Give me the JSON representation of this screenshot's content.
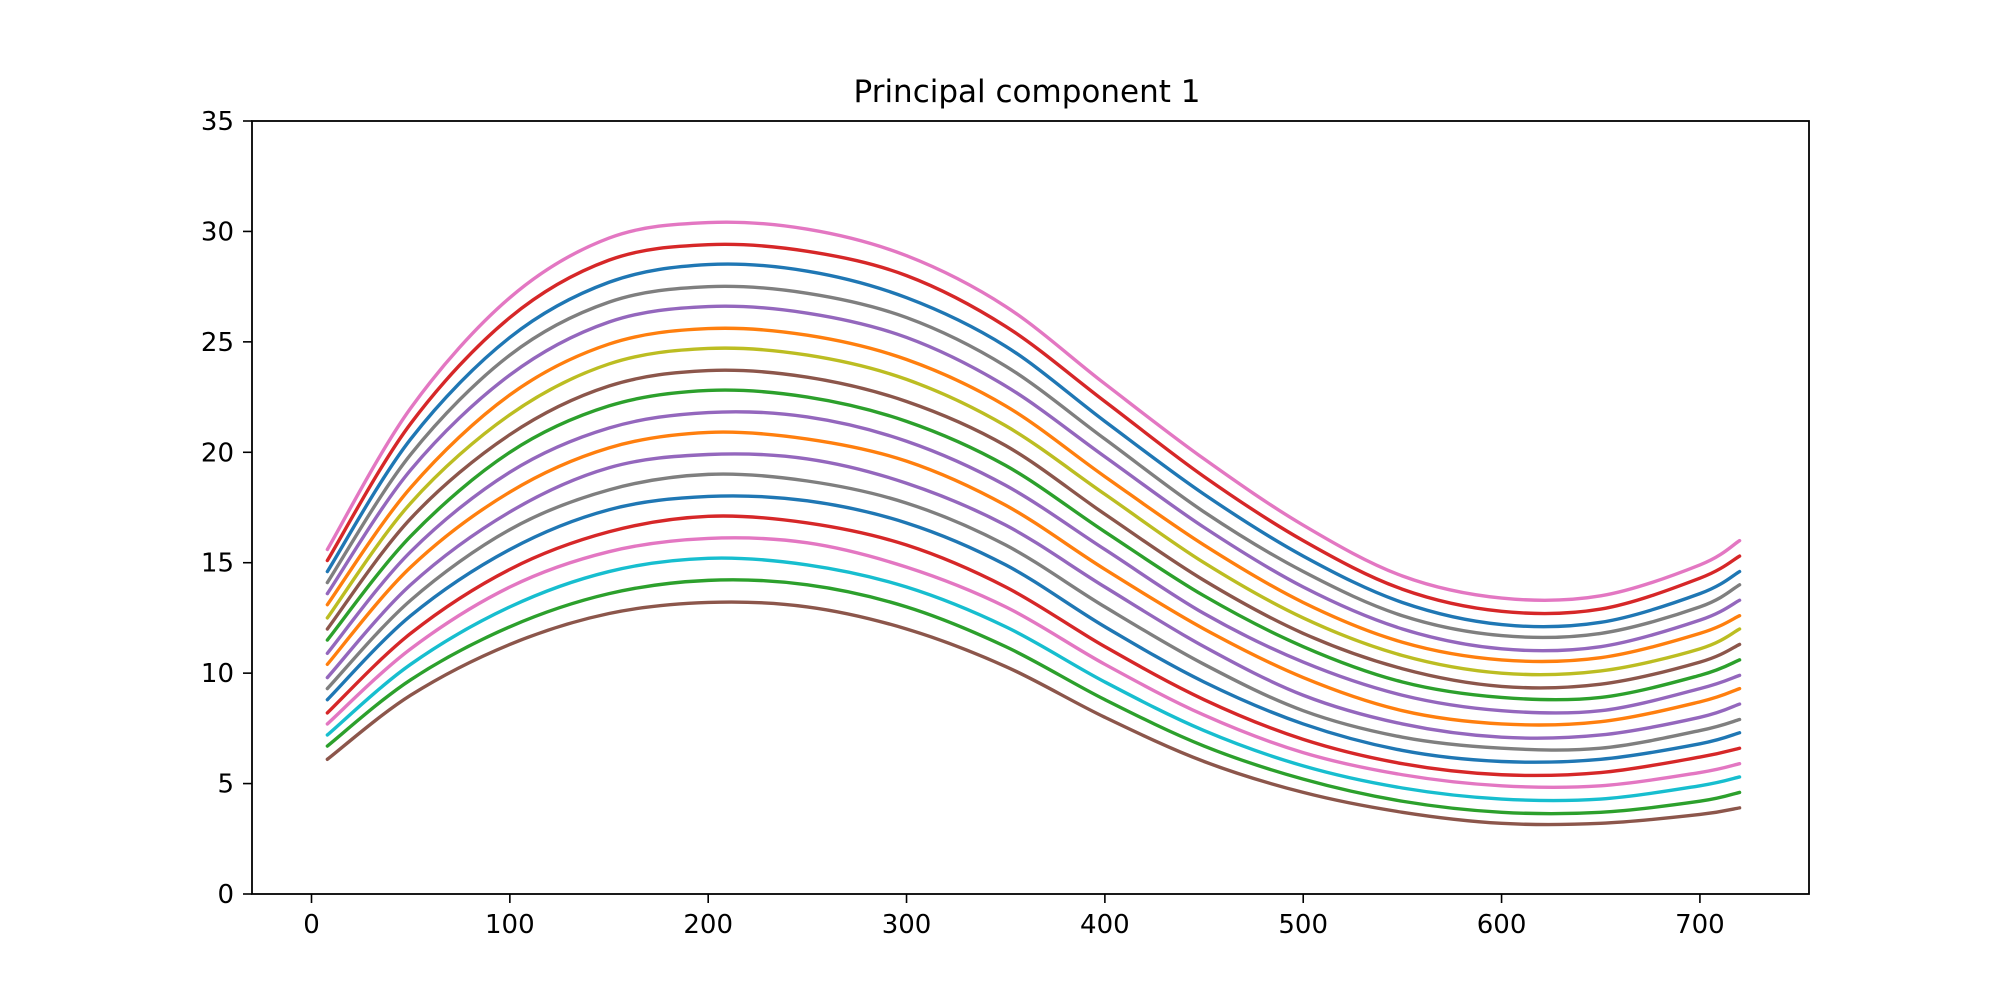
{
  "chart_data": {
    "type": "line",
    "title": "Principal component 1",
    "xlabel": "",
    "ylabel": "",
    "xlim": [
      -30,
      755
    ],
    "ylim": [
      0,
      35
    ],
    "xticks": [
      0,
      100,
      200,
      300,
      400,
      500,
      600,
      700
    ],
    "yticks": [
      0,
      5,
      10,
      15,
      20,
      25,
      30,
      35
    ],
    "grid": false,
    "legend": "none",
    "x": [
      8,
      50,
      100,
      150,
      200,
      250,
      300,
      350,
      400,
      450,
      500,
      550,
      600,
      650,
      700,
      720
    ],
    "series": [
      {
        "color": "#8c564b",
        "values": [
          6.1,
          9.0,
          11.3,
          12.7,
          13.2,
          13.0,
          12.0,
          10.3,
          8.0,
          6.0,
          4.6,
          3.7,
          3.2,
          3.2,
          3.6,
          3.9
        ]
      },
      {
        "color": "#2ca02c",
        "values": [
          6.7,
          9.7,
          12.1,
          13.6,
          14.2,
          14.0,
          13.0,
          11.2,
          8.8,
          6.7,
          5.2,
          4.2,
          3.7,
          3.7,
          4.2,
          4.6
        ]
      },
      {
        "color": "#17becf",
        "values": [
          7.2,
          10.4,
          13.0,
          14.6,
          15.2,
          14.9,
          13.9,
          12.1,
          9.6,
          7.4,
          5.8,
          4.8,
          4.3,
          4.3,
          4.9,
          5.3
        ]
      },
      {
        "color": "#e377c2",
        "values": [
          7.7,
          11.1,
          13.9,
          15.5,
          16.1,
          15.9,
          14.8,
          13.0,
          10.4,
          8.1,
          6.4,
          5.4,
          4.9,
          4.9,
          5.5,
          5.9
        ]
      },
      {
        "color": "#d62728",
        "values": [
          8.2,
          11.8,
          14.7,
          16.4,
          17.1,
          16.8,
          15.8,
          13.9,
          11.2,
          8.8,
          7.0,
          5.9,
          5.4,
          5.5,
          6.2,
          6.6
        ]
      },
      {
        "color": "#1f77b4",
        "values": [
          8.8,
          12.6,
          15.6,
          17.4,
          18.0,
          17.8,
          16.8,
          14.9,
          12.1,
          9.6,
          7.7,
          6.5,
          6.0,
          6.1,
          6.8,
          7.3
        ]
      },
      {
        "color": "#7f7f7f",
        "values": [
          9.3,
          13.3,
          16.5,
          18.3,
          19.0,
          18.7,
          17.7,
          15.8,
          13.0,
          10.4,
          8.3,
          7.1,
          6.6,
          6.6,
          7.4,
          7.9
        ]
      },
      {
        "color": "#9467bd",
        "values": [
          9.8,
          14.0,
          17.3,
          19.3,
          19.9,
          19.7,
          18.6,
          16.7,
          13.9,
          11.2,
          9.0,
          7.7,
          7.1,
          7.2,
          8.0,
          8.6
        ]
      },
      {
        "color": "#ff7f0e",
        "values": [
          10.4,
          14.8,
          18.2,
          20.2,
          20.9,
          20.6,
          19.6,
          17.6,
          14.7,
          12.0,
          9.8,
          8.3,
          7.7,
          7.8,
          8.7,
          9.3
        ]
      },
      {
        "color": "#9467bd",
        "values": [
          10.9,
          15.5,
          19.1,
          21.1,
          21.8,
          21.6,
          20.5,
          18.5,
          15.6,
          12.7,
          10.5,
          9.0,
          8.3,
          8.3,
          9.3,
          9.9
        ]
      },
      {
        "color": "#2ca02c",
        "values": [
          11.5,
          16.2,
          20.0,
          22.1,
          22.8,
          22.5,
          21.4,
          19.4,
          16.4,
          13.5,
          11.2,
          9.6,
          8.9,
          8.9,
          9.9,
          10.6
        ]
      },
      {
        "color": "#8c564b",
        "values": [
          12.0,
          17.0,
          20.8,
          23.0,
          23.7,
          23.4,
          22.3,
          20.3,
          17.2,
          14.2,
          11.8,
          10.2,
          9.4,
          9.5,
          10.5,
          11.3
        ]
      },
      {
        "color": "#bcbd22",
        "values": [
          12.5,
          17.7,
          21.7,
          24.0,
          24.7,
          24.4,
          23.3,
          21.2,
          18.1,
          15.0,
          12.5,
          10.8,
          10.0,
          10.1,
          11.1,
          12.0
        ]
      },
      {
        "color": "#ff7f0e",
        "values": [
          13.1,
          18.4,
          22.6,
          24.9,
          25.6,
          25.3,
          24.2,
          22.1,
          18.9,
          15.8,
          13.2,
          11.4,
          10.6,
          10.7,
          11.8,
          12.6
        ]
      },
      {
        "color": "#9467bd",
        "values": [
          13.6,
          19.2,
          23.5,
          25.9,
          26.6,
          26.3,
          25.2,
          23.0,
          19.8,
          16.6,
          13.9,
          12.0,
          11.1,
          11.2,
          12.4,
          13.3
        ]
      },
      {
        "color": "#7f7f7f",
        "values": [
          14.1,
          19.9,
          24.4,
          26.8,
          27.5,
          27.2,
          26.1,
          23.9,
          20.6,
          17.3,
          14.6,
          12.6,
          11.7,
          11.8,
          13.0,
          14.0
        ]
      },
      {
        "color": "#1f77b4",
        "values": [
          14.6,
          20.6,
          25.2,
          27.7,
          28.5,
          28.2,
          27.0,
          24.8,
          21.4,
          18.1,
          15.3,
          13.2,
          12.2,
          12.3,
          13.6,
          14.6
        ]
      },
      {
        "color": "#d62728",
        "values": [
          15.1,
          21.3,
          26.1,
          28.7,
          29.4,
          29.1,
          28.0,
          25.7,
          22.3,
          18.9,
          16.0,
          13.8,
          12.8,
          12.9,
          14.3,
          15.3
        ]
      },
      {
        "color": "#e377c2",
        "values": [
          15.6,
          22.0,
          27.0,
          29.7,
          30.4,
          30.1,
          28.9,
          26.6,
          23.1,
          19.7,
          16.7,
          14.4,
          13.4,
          13.5,
          14.9,
          16.0
        ]
      }
    ]
  }
}
